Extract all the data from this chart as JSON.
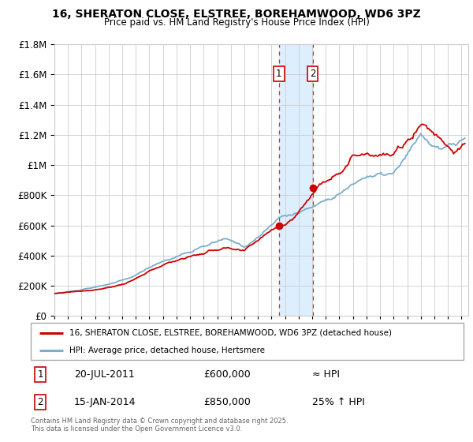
{
  "title": "16, SHERATON CLOSE, ELSTREE, BOREHAMWOOD, WD6 3PZ",
  "subtitle": "Price paid vs. HM Land Registry's House Price Index (HPI)",
  "legend_line1": "16, SHERATON CLOSE, ELSTREE, BOREHAMWOOD, WD6 3PZ (detached house)",
  "legend_line2": "HPI: Average price, detached house, Hertsmere",
  "sale1_date": "20-JUL-2011",
  "sale1_price": "£600,000",
  "sale1_hpi": "≈ HPI",
  "sale2_date": "15-JAN-2014",
  "sale2_price": "£850,000",
  "sale2_hpi": "25% ↑ HPI",
  "footer": "Contains HM Land Registry data © Crown copyright and database right 2025.\nThis data is licensed under the Open Government Licence v3.0.",
  "red_color": "#cc0000",
  "blue_color": "#7aaecc",
  "bg_color": "#ffffff",
  "grid_color": "#cccccc",
  "highlight_color": "#ddeeff",
  "sale1_year": 2011.55,
  "sale2_year": 2014.04,
  "ylim_max": 1800000,
  "xlim_start": 1995,
  "xlim_end": 2025.5
}
